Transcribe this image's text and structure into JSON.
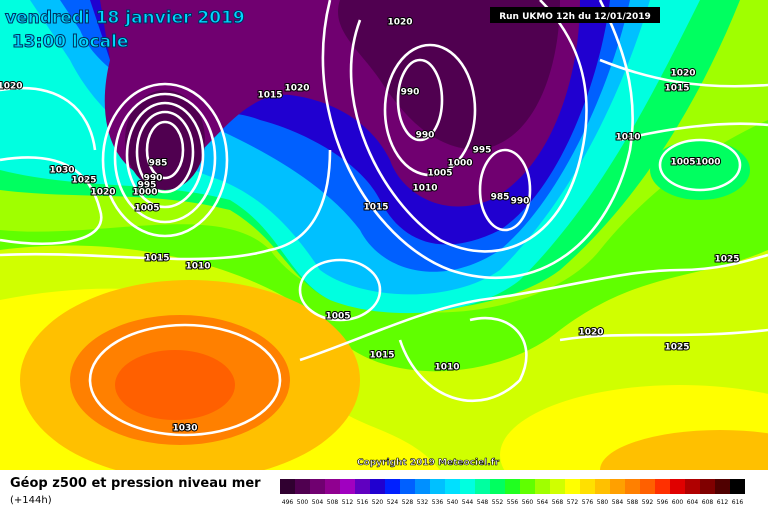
{
  "header": {
    "date": "vendredi 18 janvier 2019",
    "time": "13:00 locale",
    "run": "Run UKMO 12h du 12/01/2019"
  },
  "map": {
    "isobar_labels": [
      1020,
      1020,
      1015,
      1020,
      990,
      990,
      1000,
      995,
      1005,
      1010,
      985,
      990,
      985,
      990,
      995,
      1000,
      1005,
      1030,
      1025,
      1020,
      1015,
      1010,
      1015,
      1005,
      1015,
      1010,
      1020,
      1025,
      1025,
      1005,
      1000,
      1010,
      1020,
      1015,
      1030
    ],
    "copyright": "Copyright 2019 Meteociel.fr"
  },
  "legend": {
    "title": "Géop z500 et pression niveau mer",
    "lead_time": "(+144h)",
    "scale_values": [
      496,
      500,
      504,
      508,
      512,
      516,
      520,
      524,
      528,
      532,
      536,
      540,
      544,
      548,
      552,
      556,
      560,
      564,
      568,
      572,
      576,
      580,
      584,
      588,
      592,
      596,
      600,
      604,
      608,
      612,
      616
    ],
    "scale_colors": [
      "#300030",
      "#500050",
      "#700070",
      "#900090",
      "#a000c0",
      "#6000c0",
      "#2000d0",
      "#0020ff",
      "#0060ff",
      "#0090ff",
      "#00c0ff",
      "#00e0ff",
      "#00ffe0",
      "#00ffa0",
      "#00ff60",
      "#20ff20",
      "#60ff00",
      "#a0ff00",
      "#d0ff00",
      "#ffff00",
      "#ffe000",
      "#ffc000",
      "#ffa000",
      "#ff8000",
      "#ff6000",
      "#ff3000",
      "#e00000",
      "#b00000",
      "#800000",
      "#500000",
      "#000000"
    ]
  }
}
